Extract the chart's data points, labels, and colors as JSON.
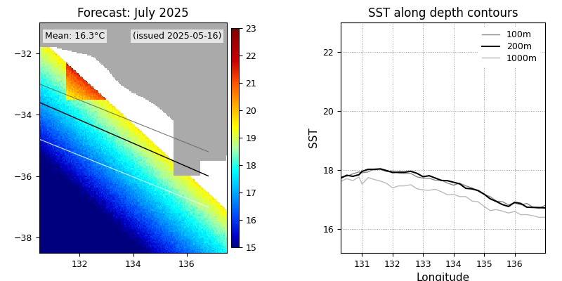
{
  "map_title": "Forecast: July 2025",
  "map_mean_text": "Mean: 16.3°C",
  "map_issued_text": "(issued 2025-05-16)",
  "colorbar_min": 15,
  "colorbar_max": 23,
  "colorbar_ticks": [
    15,
    16,
    17,
    18,
    19,
    20,
    21,
    22,
    23
  ],
  "map_xlim": [
    130.5,
    137.5
  ],
  "map_ylim": [
    -38.5,
    -31.0
  ],
  "map_xticks": [
    132,
    134,
    136
  ],
  "map_yticks": [
    -38,
    -36,
    -34,
    -32
  ],
  "land_color": "#aaaaaa",
  "ocean_bg_color": "#00008b",
  "line_title": "SST along depth contours",
  "line_xlabel": "Longitude",
  "line_ylabel": "SST",
  "line_xlim": [
    130.3,
    137.0
  ],
  "line_ylim": [
    15.2,
    23.0
  ],
  "line_xticks": [
    131,
    132,
    133,
    134,
    135,
    136
  ],
  "line_yticks": [
    16,
    18,
    20,
    22
  ],
  "line_100m_color": "#888888",
  "line_200m_color": "#000000",
  "line_1000m_color": "#bbbbbb",
  "legend_labels": [
    "100m",
    "200m",
    "1000m"
  ],
  "sst_100m_x": [
    130.3,
    130.5,
    130.7,
    130.9,
    131.0,
    131.2,
    131.4,
    131.6,
    131.8,
    132.0,
    132.2,
    132.4,
    132.6,
    132.8,
    133.0,
    133.2,
    133.4,
    133.6,
    133.8,
    134.0,
    134.2,
    134.4,
    134.6,
    134.8,
    135.0,
    135.2,
    135.4,
    135.6,
    135.8,
    136.0,
    136.2,
    136.4,
    136.6,
    136.8,
    137.0
  ],
  "sst_100m_y": [
    17.75,
    17.8,
    17.85,
    17.88,
    17.92,
    17.95,
    17.98,
    18.0,
    17.97,
    17.95,
    17.92,
    17.9,
    17.88,
    17.85,
    17.8,
    17.75,
    17.7,
    17.65,
    17.6,
    17.55,
    17.5,
    17.48,
    17.4,
    17.35,
    17.2,
    17.1,
    17.0,
    16.92,
    16.85,
    16.9,
    16.85,
    16.8,
    16.75,
    16.75,
    16.78
  ],
  "sst_200m_x": [
    130.3,
    130.5,
    130.7,
    130.9,
    131.0,
    131.2,
    131.4,
    131.6,
    131.8,
    132.0,
    132.2,
    132.4,
    132.6,
    132.8,
    133.0,
    133.2,
    133.4,
    133.6,
    133.8,
    134.0,
    134.2,
    134.4,
    134.6,
    134.8,
    135.0,
    135.2,
    135.4,
    135.6,
    135.8,
    136.0,
    136.2,
    136.4,
    136.6,
    136.8,
    137.0
  ],
  "sst_200m_y": [
    17.78,
    17.82,
    17.87,
    17.9,
    17.95,
    18.0,
    18.02,
    18.05,
    18.0,
    17.98,
    17.96,
    17.95,
    17.92,
    17.88,
    17.85,
    17.8,
    17.75,
    17.68,
    17.62,
    17.55,
    17.5,
    17.42,
    17.38,
    17.3,
    17.15,
    17.05,
    16.95,
    16.88,
    16.82,
    16.88,
    16.82,
    16.75,
    16.7,
    16.72,
    16.75
  ],
  "sst_1000m_x": [
    130.3,
    130.5,
    130.7,
    130.9,
    131.0,
    131.2,
    131.4,
    131.6,
    131.8,
    132.0,
    132.2,
    132.4,
    132.6,
    132.8,
    133.0,
    133.2,
    133.4,
    133.6,
    133.8,
    134.0,
    134.2,
    134.4,
    134.6,
    134.8,
    135.0,
    135.2,
    135.4,
    135.6,
    135.8,
    136.0,
    136.2,
    136.4,
    136.6,
    136.8,
    137.0
  ],
  "sst_1000m_y": [
    17.6,
    17.62,
    17.65,
    17.68,
    17.68,
    17.7,
    17.68,
    17.65,
    17.55,
    17.52,
    17.48,
    17.45,
    17.42,
    17.4,
    17.38,
    17.35,
    17.3,
    17.25,
    17.2,
    17.15,
    17.1,
    17.05,
    17.0,
    16.95,
    16.8,
    16.72,
    16.65,
    16.6,
    16.55,
    16.62,
    16.58,
    16.52,
    16.48,
    16.45,
    16.42
  ]
}
